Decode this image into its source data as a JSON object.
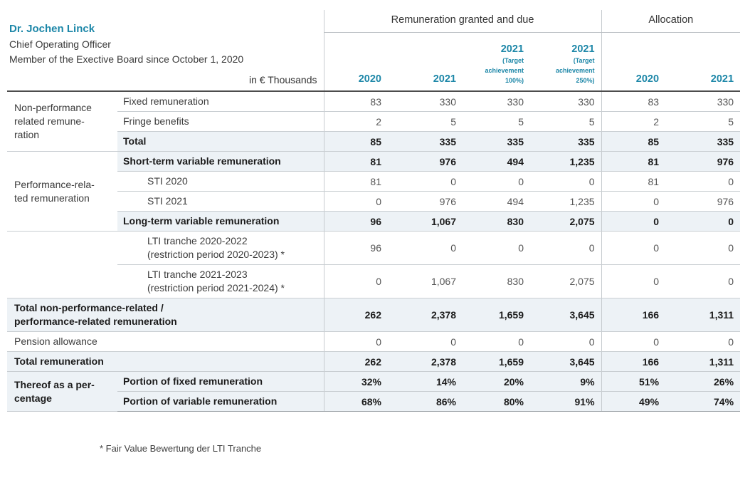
{
  "person": {
    "name": "Dr. Jochen Linck",
    "title": "Chief Operating Officer",
    "tenure": "Member of the Exective Board since October 1, 2020",
    "units": "in € Thousands"
  },
  "header": {
    "group1": "Remuneration granted and due",
    "group2": "Allocation",
    "columns": [
      {
        "year": "2020"
      },
      {
        "year": "2021"
      },
      {
        "year": "2021",
        "note_lines": [
          "(Target",
          "achievement",
          "100%)"
        ]
      },
      {
        "year": "2021",
        "note_lines": [
          "(Target",
          "achievement",
          "250%)"
        ]
      },
      {
        "year": "2020"
      },
      {
        "year": "2021"
      }
    ]
  },
  "rows": [
    {
      "group": {
        "lines": [
          "Non-performance",
          "related remune-",
          "ration"
        ],
        "span": 3
      },
      "label": "Fixed remuneration",
      "values": [
        "83",
        "330",
        "330",
        "330",
        "83",
        "330"
      ]
    },
    {
      "label": "Fringe benefits",
      "values": [
        "2",
        "5",
        "5",
        "5",
        "2",
        "5"
      ]
    },
    {
      "label": "Total",
      "bold": true,
      "shaded": true,
      "values": [
        "85",
        "335",
        "335",
        "335",
        "85",
        "335"
      ]
    },
    {
      "group": {
        "lines": [
          "Performance-rela-",
          "ted remuneration"
        ],
        "span": 4
      },
      "label": "Short-term variable remuneration",
      "bold": true,
      "shaded": true,
      "values": [
        "81",
        "976",
        "494",
        "1,235",
        "81",
        "976"
      ]
    },
    {
      "label": "STI 2020",
      "indent": true,
      "values": [
        "81",
        "0",
        "0",
        "0",
        "81",
        "0"
      ]
    },
    {
      "label": "STI 2021",
      "indent": true,
      "values": [
        "0",
        "976",
        "494",
        "1,235",
        "0",
        "976"
      ]
    },
    {
      "label": "Long-term variable remuneration",
      "bold": true,
      "shaded": true,
      "values": [
        "96",
        "1,067",
        "830",
        "2,075",
        "0",
        "0"
      ]
    },
    {
      "group": {
        "lines": [],
        "span": 2
      },
      "label_lines": [
        "LTI tranche 2020-2022",
        "(restriction period 2020-2023) *"
      ],
      "indent": true,
      "values": [
        "96",
        "0",
        "0",
        "0",
        "0",
        "0"
      ]
    },
    {
      "label_lines": [
        "LTI tranche 2021-2023",
        "(restriction period 2021-2024) *"
      ],
      "indent": true,
      "values": [
        "0",
        "1,067",
        "830",
        "2,075",
        "0",
        "0"
      ]
    },
    {
      "label_lines": [
        "Total non-performance-related /",
        "performance-related remuneration"
      ],
      "fullspan": true,
      "bold": true,
      "shaded": true,
      "values": [
        "262",
        "2,378",
        "1,659",
        "3,645",
        "166",
        "1,311"
      ]
    },
    {
      "label": "Pension allowance",
      "fullspan": true,
      "values": [
        "0",
        "0",
        "0",
        "0",
        "0",
        "0"
      ]
    },
    {
      "label": "Total remuneration",
      "fullspan": true,
      "bold": true,
      "shaded": true,
      "values": [
        "262",
        "2,378",
        "1,659",
        "3,645",
        "166",
        "1,311"
      ]
    },
    {
      "group": {
        "lines": [
          "Thereof as a per-",
          "centage"
        ],
        "span": 2,
        "bold": true,
        "shaded": true
      },
      "label": "Portion of fixed remuneration",
      "bold": true,
      "shaded": true,
      "values": [
        "32%",
        "14%",
        "20%",
        "9%",
        "51%",
        "26%"
      ]
    },
    {
      "label": "Portion of variable remuneration",
      "bold": true,
      "shaded": true,
      "values": [
        "68%",
        "86%",
        "80%",
        "91%",
        "49%",
        "74%"
      ]
    }
  ],
  "footnote": "* Fair Value Bewertung der LTI Tranche",
  "colors": {
    "accent": "#1d87a8",
    "row_shading": "#edf2f6"
  }
}
